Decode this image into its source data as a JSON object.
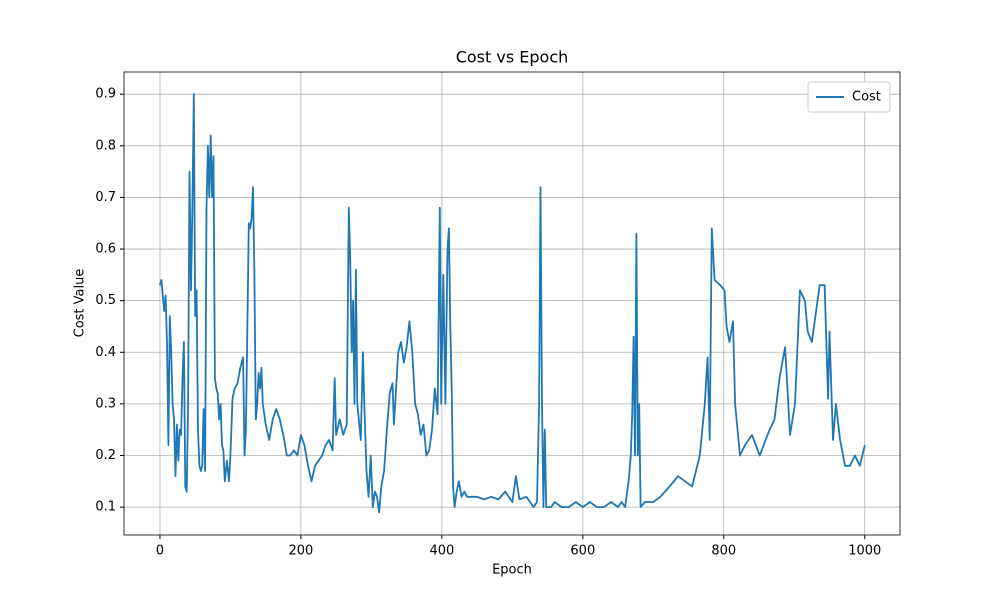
{
  "chart_data": {
    "type": "line",
    "title": "Cost vs Epoch",
    "xlabel": "Epoch",
    "ylabel": "Cost Value",
    "xlim": [
      -51,
      1050
    ],
    "ylim": [
      0.046,
      0.943
    ],
    "xticks": [
      0,
      200,
      400,
      600,
      800,
      1000
    ],
    "yticks": [
      0.1,
      0.2,
      0.3,
      0.4,
      0.5,
      0.6,
      0.7,
      0.8,
      0.9
    ],
    "grid": true,
    "legend": "upper right",
    "series": [
      {
        "name": "Cost",
        "color": "#1f77b4",
        "x": [
          0,
          2,
          4,
          6,
          8,
          10,
          12,
          14,
          16,
          18,
          20,
          22,
          24,
          26,
          28,
          30,
          32,
          34,
          36,
          38,
          40,
          42,
          44,
          46,
          48,
          50,
          52,
          54,
          56,
          58,
          60,
          62,
          64,
          66,
          68,
          70,
          72,
          74,
          76,
          78,
          80,
          82,
          84,
          86,
          88,
          90,
          92,
          95,
          98,
          100,
          103,
          106,
          110,
          114,
          118,
          120,
          122,
          124,
          126,
          128,
          130,
          132,
          134,
          136,
          138,
          140,
          142,
          144,
          146,
          150,
          155,
          160,
          165,
          170,
          175,
          180,
          185,
          190,
          195,
          200,
          205,
          210,
          215,
          220,
          225,
          230,
          235,
          240,
          245,
          248,
          250,
          255,
          260,
          265,
          268,
          270,
          272,
          274,
          276,
          278,
          280,
          285,
          288,
          290,
          293,
          296,
          299,
          302,
          305,
          308,
          311,
          314,
          318,
          322,
          326,
          330,
          332,
          335,
          338,
          342,
          346,
          350,
          354,
          358,
          362,
          366,
          370,
          374,
          378,
          382,
          386,
          390,
          394,
          397,
          399,
          402,
          405,
          408,
          410,
          412,
          414,
          416,
          418,
          421,
          424,
          428,
          432,
          436,
          440,
          450,
          460,
          470,
          480,
          490,
          500,
          505,
          510,
          520,
          530,
          535,
          538,
          540,
          542,
          544,
          546,
          548,
          555,
          560,
          570,
          580,
          590,
          600,
          610,
          620,
          630,
          640,
          650,
          655,
          660,
          665,
          668,
          670,
          672,
          674,
          676,
          678,
          680,
          682,
          688,
          700,
          710,
          723,
          735,
          745,
          755,
          766,
          773,
          777,
          780,
          783,
          787,
          795,
          801,
          804,
          808,
          813,
          816,
          823,
          830,
          840,
          851,
          865,
          872,
          879,
          887,
          894,
          901,
          908,
          915,
          919,
          925,
          929,
          936,
          943,
          948,
          950,
          955,
          959,
          965,
          972,
          979,
          986,
          993,
          1000
        ],
        "values": [
          0.53,
          0.54,
          0.51,
          0.48,
          0.51,
          0.42,
          0.22,
          0.47,
          0.4,
          0.3,
          0.27,
          0.16,
          0.26,
          0.19,
          0.25,
          0.24,
          0.35,
          0.42,
          0.14,
          0.13,
          0.3,
          0.75,
          0.52,
          0.68,
          0.9,
          0.47,
          0.52,
          0.25,
          0.18,
          0.17,
          0.18,
          0.29,
          0.17,
          0.68,
          0.8,
          0.7,
          0.82,
          0.7,
          0.78,
          0.35,
          0.33,
          0.32,
          0.27,
          0.3,
          0.22,
          0.21,
          0.15,
          0.19,
          0.15,
          0.2,
          0.31,
          0.33,
          0.34,
          0.37,
          0.39,
          0.2,
          0.25,
          0.44,
          0.65,
          0.64,
          0.66,
          0.72,
          0.55,
          0.27,
          0.3,
          0.36,
          0.33,
          0.37,
          0.3,
          0.26,
          0.23,
          0.27,
          0.29,
          0.27,
          0.24,
          0.2,
          0.2,
          0.21,
          0.2,
          0.24,
          0.22,
          0.18,
          0.15,
          0.18,
          0.19,
          0.2,
          0.22,
          0.23,
          0.21,
          0.35,
          0.24,
          0.27,
          0.24,
          0.26,
          0.68,
          0.58,
          0.4,
          0.5,
          0.3,
          0.56,
          0.3,
          0.23,
          0.4,
          0.3,
          0.17,
          0.12,
          0.2,
          0.1,
          0.13,
          0.12,
          0.09,
          0.14,
          0.17,
          0.25,
          0.32,
          0.34,
          0.26,
          0.33,
          0.4,
          0.42,
          0.38,
          0.41,
          0.46,
          0.4,
          0.3,
          0.28,
          0.24,
          0.26,
          0.2,
          0.21,
          0.25,
          0.33,
          0.28,
          0.68,
          0.3,
          0.55,
          0.3,
          0.6,
          0.64,
          0.45,
          0.33,
          0.14,
          0.1,
          0.13,
          0.15,
          0.12,
          0.13,
          0.12,
          0.12,
          0.12,
          0.115,
          0.12,
          0.115,
          0.13,
          0.11,
          0.16,
          0.115,
          0.12,
          0.1,
          0.11,
          0.3,
          0.72,
          0.3,
          0.1,
          0.25,
          0.1,
          0.1,
          0.11,
          0.1,
          0.1,
          0.11,
          0.1,
          0.11,
          0.1,
          0.1,
          0.11,
          0.1,
          0.11,
          0.1,
          0.15,
          0.2,
          0.28,
          0.43,
          0.2,
          0.63,
          0.2,
          0.3,
          0.1,
          0.11,
          0.11,
          0.12,
          0.14,
          0.16,
          0.15,
          0.14,
          0.2,
          0.3,
          0.39,
          0.23,
          0.64,
          0.54,
          0.53,
          0.52,
          0.45,
          0.42,
          0.46,
          0.3,
          0.2,
          0.22,
          0.24,
          0.2,
          0.25,
          0.27,
          0.35,
          0.41,
          0.24,
          0.3,
          0.52,
          0.5,
          0.44,
          0.42,
          0.46,
          0.53,
          0.53,
          0.31,
          0.44,
          0.23,
          0.3,
          0.23,
          0.18,
          0.18,
          0.2,
          0.18,
          0.22
        ]
      }
    ]
  }
}
